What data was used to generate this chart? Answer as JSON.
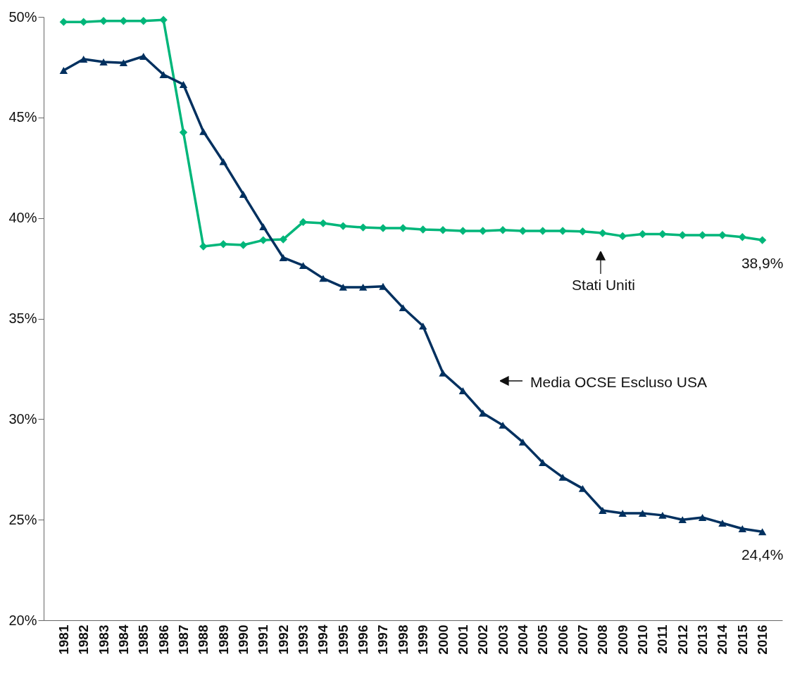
{
  "chart_data": {
    "type": "line",
    "categories": [
      "1981",
      "1982",
      "1983",
      "1984",
      "1985",
      "1986",
      "1987",
      "1988",
      "1989",
      "1990",
      "1991",
      "1992",
      "1993",
      "1994",
      "1995",
      "1996",
      "1997",
      "1998",
      "1999",
      "2000",
      "2001",
      "2002",
      "2003",
      "2004",
      "2005",
      "2006",
      "2007",
      "2008",
      "2009",
      "2010",
      "2011",
      "2012",
      "2013",
      "2014",
      "2015",
      "2016"
    ],
    "series": [
      {
        "name": "Stati Uniti",
        "color": "#00b67a",
        "marker": "diamond",
        "values": [
          49.75,
          49.75,
          49.8,
          49.8,
          49.8,
          49.85,
          44.26,
          38.59,
          38.7,
          38.66,
          38.9,
          38.94,
          39.8,
          39.74,
          39.6,
          39.53,
          39.5,
          39.5,
          39.43,
          39.4,
          39.36,
          39.36,
          39.4,
          39.36,
          39.36,
          39.36,
          39.33,
          39.25,
          39.1,
          39.2,
          39.2,
          39.15,
          39.15,
          39.15,
          39.05,
          38.9
        ]
      },
      {
        "name": "Media OCSE Escluso USA",
        "color": "#00305f",
        "marker": "triangle",
        "values": [
          47.34,
          47.9,
          47.76,
          47.72,
          48.04,
          47.13,
          46.64,
          44.3,
          42.8,
          41.18,
          39.57,
          38.03,
          37.64,
          37.0,
          36.56,
          36.56,
          36.6,
          35.54,
          34.63,
          32.29,
          31.41,
          30.3,
          29.7,
          28.86,
          27.84,
          27.11,
          26.55,
          25.46,
          25.32,
          25.32,
          25.22,
          25.0,
          25.11,
          24.83,
          24.55,
          24.4
        ]
      }
    ],
    "ylim": [
      20,
      50
    ],
    "yticks": [
      {
        "value": 20,
        "label": "20%"
      },
      {
        "value": 25,
        "label": "25%"
      },
      {
        "value": 30,
        "label": "30%"
      },
      {
        "value": 35,
        "label": "35%"
      },
      {
        "value": 40,
        "label": "40%"
      },
      {
        "value": 45,
        "label": "45%"
      },
      {
        "value": 50,
        "label": "50%"
      }
    ],
    "annotations": [
      {
        "text": "38,9%",
        "x": "2016",
        "y": 38.9
      },
      {
        "text": "24,4%",
        "x": "2016",
        "y": 24.4
      }
    ],
    "grid": false,
    "legend": false
  }
}
